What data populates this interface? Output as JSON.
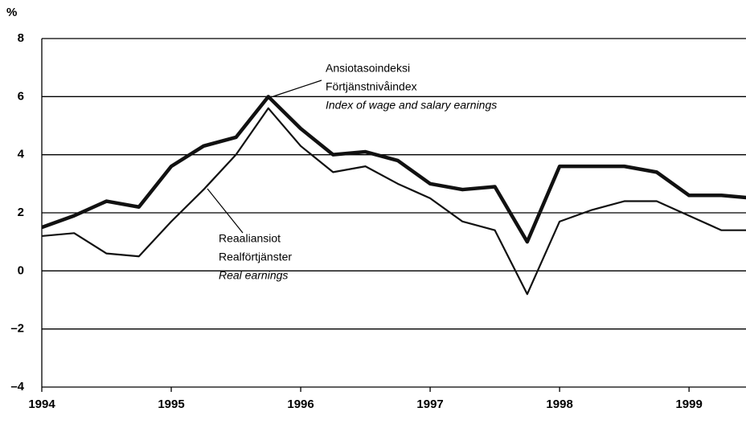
{
  "chart_data": {
    "type": "line",
    "y_label": "%",
    "x": [
      1994,
      1994.25,
      1994.5,
      1994.75,
      1995,
      1995.25,
      1995.5,
      1995.75,
      1996,
      1996.25,
      1996.5,
      1996.75,
      1997,
      1997.25,
      1997.5,
      1997.75,
      1998,
      1998.25,
      1998.5,
      1998.75,
      1999,
      1999.25,
      1999.5
    ],
    "series": [
      {
        "color": "#111111",
        "values": [
          1.5,
          1.9,
          2.4,
          2.2,
          3.6,
          4.3,
          4.6,
          6.0,
          4.9,
          4.0,
          4.1,
          3.8,
          3.0,
          2.8,
          2.9,
          1.0,
          3.6,
          3.6,
          3.6,
          3.4,
          2.6,
          2.6,
          2.5
        ]
      },
      {
        "color": "#111111",
        "values": [
          1.2,
          1.3,
          0.6,
          0.5,
          1.7,
          2.8,
          4.0,
          5.6,
          4.3,
          3.4,
          3.6,
          3.0,
          2.5,
          1.7,
          1.4,
          -0.8,
          1.7,
          2.1,
          2.4,
          2.4,
          1.9,
          1.4,
          1.4
        ]
      }
    ],
    "annotations": [
      {
        "lines": [
          "Ansiotasoindeksi",
          "Förtjänstnivåindex",
          "Index of wage and salary earnings"
        ]
      },
      {
        "lines": [
          "Reaaliansiot",
          "Realförtjänster",
          "Real earnings"
        ]
      }
    ],
    "xlim": [
      1994,
      1999.44
    ],
    "xticks": [
      1994,
      1995,
      1996,
      1997,
      1998,
      1999
    ],
    "ylim": [
      -4,
      8
    ],
    "yticks": [
      {
        "value": -4,
        "label": "–4"
      },
      {
        "value": -2,
        "label": "–2"
      },
      0,
      2,
      4,
      6,
      8
    ],
    "grid": true
  }
}
